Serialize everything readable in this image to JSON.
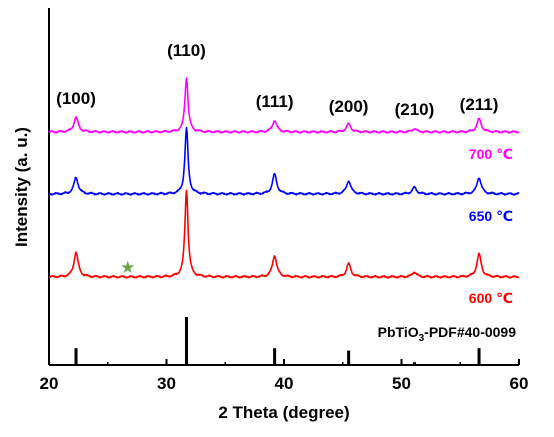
{
  "chart_data": {
    "type": "line",
    "xlabel": "2 Theta (degree)",
    "ylabel": "Intensity (a. u.)",
    "xlim": [
      20,
      60
    ],
    "x_ticks": [
      20,
      30,
      40,
      50,
      60
    ],
    "y_ticks_shown": false,
    "grid": false,
    "legend": "labels at right end of each trace",
    "series": [
      {
        "name": "700 ℃",
        "color": "#ff00ff",
        "baseline": 1.0,
        "peaks": [
          {
            "x": 22.3,
            "height": 0.09
          },
          {
            "x": 31.7,
            "height": 0.33
          },
          {
            "x": 39.2,
            "height": 0.07
          },
          {
            "x": 45.5,
            "height": 0.05
          },
          {
            "x": 51.1,
            "height": 0.02
          },
          {
            "x": 56.6,
            "height": 0.08
          }
        ]
      },
      {
        "name": "650 ℃",
        "color": "#0000ff",
        "baseline": 0.0,
        "peaks": [
          {
            "x": 22.3,
            "height": 0.1
          },
          {
            "x": 31.7,
            "height": 0.4
          },
          {
            "x": 39.2,
            "height": 0.12
          },
          {
            "x": 45.5,
            "height": 0.08
          },
          {
            "x": 51.1,
            "height": 0.04
          },
          {
            "x": 56.6,
            "height": 0.1
          }
        ]
      },
      {
        "name": "600 ℃",
        "color": "#ff0000",
        "baseline": -1.0,
        "peaks": [
          {
            "x": 22.3,
            "height": 0.15
          },
          {
            "x": 31.7,
            "height": 0.53
          },
          {
            "x": 39.2,
            "height": 0.13
          },
          {
            "x": 45.5,
            "height": 0.08
          },
          {
            "x": 51.1,
            "height": 0.03
          },
          {
            "x": 56.6,
            "height": 0.14
          }
        ]
      }
    ],
    "reference": {
      "name": "PbTiO3-PDF#40-0099",
      "label_main": "PbTiO",
      "label_sub": "3",
      "label_rest": "-PDF#40-0099",
      "sticks": [
        {
          "x": 22.3,
          "height": 0.35
        },
        {
          "x": 31.7,
          "height": 1.0
        },
        {
          "x": 39.2,
          "height": 0.35
        },
        {
          "x": 45.5,
          "height": 0.3
        },
        {
          "x": 51.1,
          "height": 0.06
        },
        {
          "x": 56.6,
          "height": 0.35
        }
      ]
    },
    "annotations": [
      {
        "text": "(100)",
        "x": 22.3
      },
      {
        "text": "(110)",
        "x": 31.7
      },
      {
        "text": "(111)",
        "x": 39.2
      },
      {
        "text": "(200)",
        "x": 45.5
      },
      {
        "text": "(210)",
        "x": 51.1
      },
      {
        "text": "(211)",
        "x": 56.6
      }
    ],
    "marker": {
      "symbol": "★",
      "x": 26.7,
      "series": "600 ℃",
      "color": "#6aa84f"
    }
  }
}
